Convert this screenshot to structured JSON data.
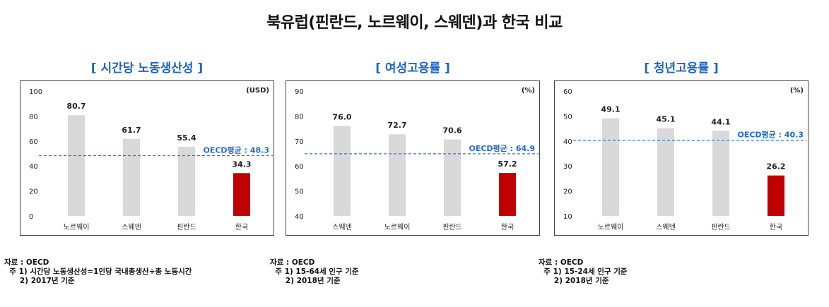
{
  "title": "북유럽(핀란드, 노르웨이, 스웨덴)과 한국 비교",
  "colors": {
    "bar": "#d9d9d9",
    "highlight": "#c00000",
    "avg_line": "#2e75d6",
    "avg_text": "#1f6bd0",
    "panel_title": "#1a66c8"
  },
  "panels": [
    {
      "title": "[ 시간당 노동생산성 ]",
      "notes": [
        "자료 : OECD",
        "  주 1) 시간당 노동생산성=1인당 국내총생산÷총 노동시간",
        "      2) 2017년 기준"
      ]
    },
    {
      "title": "[ 여성고용률 ]",
      "notes": [
        "자료 : OECD",
        "  주 1) 15-64세 인구 기준",
        "      2) 2018년 기준"
      ]
    },
    {
      "title": "[ 청년고용률 ]",
      "notes": [
        "자료 : OECD",
        "  주 1) 15-24세 인구 기준",
        "      2) 2018년 기준"
      ]
    }
  ],
  "chart_data": [
    {
      "type": "bar",
      "title": "[ 시간당 노동생산성 ]",
      "unit": "(USD)",
      "categories": [
        "노르웨이",
        "스웨덴",
        "핀란드",
        "한국"
      ],
      "values": [
        80.7,
        61.7,
        55.4,
        34.3
      ],
      "value_labels": [
        "80.7",
        "61.7",
        "55.4",
        "34.3"
      ],
      "highlight_index": 3,
      "ylim": [
        0,
        100
      ],
      "yticks": [
        0,
        20,
        40,
        60,
        80,
        100
      ],
      "reference_line": {
        "value": 48.3,
        "label": "OECD평균 : 48.3"
      }
    },
    {
      "type": "bar",
      "title": "[ 여성고용률 ]",
      "unit": "(%)",
      "categories": [
        "스웨덴",
        "노르웨이",
        "핀란드",
        "한국"
      ],
      "values": [
        76.0,
        72.7,
        70.6,
        57.2
      ],
      "value_labels": [
        "76.0",
        "72.7",
        "70.6",
        "57.2"
      ],
      "highlight_index": 3,
      "ylim": [
        40,
        90
      ],
      "yticks": [
        40,
        50,
        60,
        70,
        80,
        90
      ],
      "reference_line": {
        "value": 64.9,
        "label": "OECD평균 : 64.9"
      }
    },
    {
      "type": "bar",
      "title": "[ 청년고용률 ]",
      "unit": "(%)",
      "categories": [
        "노르웨이",
        "스웨덴",
        "핀란드",
        "한국"
      ],
      "values": [
        49.1,
        45.1,
        44.1,
        26.2
      ],
      "value_labels": [
        "49.1",
        "45.1",
        "44.1",
        "26.2"
      ],
      "highlight_index": 3,
      "ylim": [
        10,
        60
      ],
      "yticks": [
        10,
        20,
        30,
        40,
        50,
        60
      ],
      "reference_line": {
        "value": 40.3,
        "label": "OECD평균 : 40.3"
      }
    }
  ]
}
